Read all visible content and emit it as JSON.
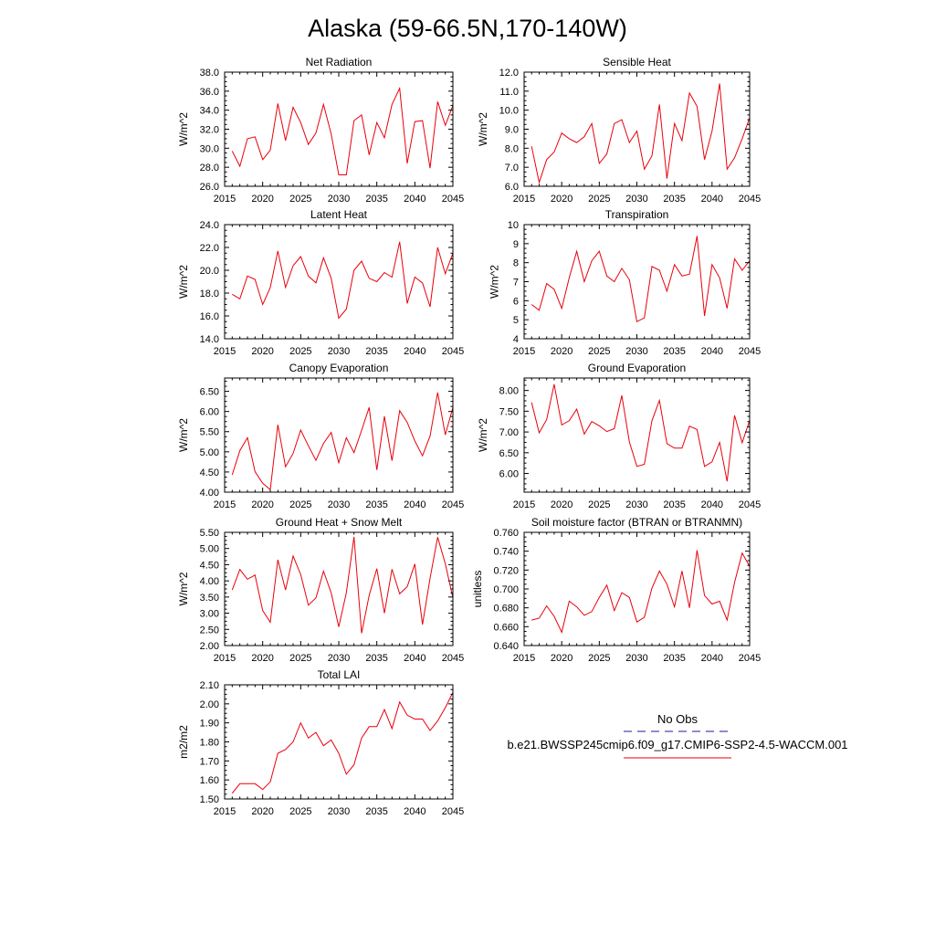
{
  "figure": {
    "title": "Alaska (59-66.5N,170-140W)"
  },
  "colors": {
    "model": "#e8000b",
    "obs": "#1a1aa6",
    "frame": "#000000"
  },
  "legend": {
    "obs_label": "No Obs",
    "model_label": "b.e21.BWSSP245cmip6.f09_g17.CMIP6-SSP2-4.5-WACCM.001"
  },
  "chart_data": [
    {
      "type": "line",
      "title": "Net Radiation",
      "ylabel": "W/m^2",
      "xlim": [
        2015,
        2045
      ],
      "ylim": [
        26.0,
        38.0
      ],
      "xticks": [
        2015,
        2020,
        2025,
        2030,
        2035,
        2040,
        2045
      ],
      "yticks": [
        "26.0",
        "28.0",
        "30.0",
        "32.0",
        "34.0",
        "36.0",
        "38.0"
      ],
      "x": [
        2016,
        2017,
        2018,
        2019,
        2020,
        2021,
        2022,
        2023,
        2024,
        2025,
        2026,
        2027,
        2028,
        2029,
        2030,
        2031,
        2032,
        2033,
        2034,
        2035,
        2036,
        2037,
        2038,
        2039,
        2040,
        2041,
        2042,
        2043,
        2044,
        2045
      ],
      "values": [
        29.7,
        28.1,
        31.0,
        31.2,
        28.8,
        29.8,
        34.7,
        30.8,
        34.3,
        32.7,
        30.4,
        31.6,
        34.6,
        31.5,
        27.2,
        27.2,
        32.9,
        33.5,
        29.3,
        32.7,
        31.1,
        34.6,
        36.3,
        28.4,
        32.8,
        32.9,
        27.9,
        34.9,
        32.4,
        34.5
      ]
    },
    {
      "type": "line",
      "title": "Sensible Heat",
      "ylabel": "W/m^2",
      "xlim": [
        2015,
        2045
      ],
      "ylim": [
        6.0,
        12.0
      ],
      "xticks": [
        2015,
        2020,
        2025,
        2030,
        2035,
        2040,
        2045
      ],
      "yticks": [
        "6.0",
        "7.0",
        "8.0",
        "9.0",
        "10.0",
        "11.0",
        "12.0"
      ],
      "x": [
        2016,
        2017,
        2018,
        2019,
        2020,
        2021,
        2022,
        2023,
        2024,
        2025,
        2026,
        2027,
        2028,
        2029,
        2030,
        2031,
        2032,
        2033,
        2034,
        2035,
        2036,
        2037,
        2038,
        2039,
        2040,
        2041,
        2042,
        2043,
        2044,
        2045
      ],
      "values": [
        8.1,
        6.2,
        7.4,
        7.8,
        8.8,
        8.5,
        8.3,
        8.6,
        9.3,
        7.2,
        7.7,
        9.3,
        9.5,
        8.3,
        8.9,
        6.9,
        7.6,
        10.3,
        6.4,
        9.3,
        8.4,
        10.9,
        10.2,
        7.4,
        8.9,
        11.4,
        6.9,
        7.5,
        8.5,
        9.6
      ]
    },
    {
      "type": "line",
      "title": "Latent Heat",
      "ylabel": "W/m^2",
      "xlim": [
        2015,
        2045
      ],
      "ylim": [
        14.0,
        24.0
      ],
      "xticks": [
        2015,
        2020,
        2025,
        2030,
        2035,
        2040,
        2045
      ],
      "yticks": [
        "14.0",
        "16.0",
        "18.0",
        "20.0",
        "22.0",
        "24.0"
      ],
      "x": [
        2016,
        2017,
        2018,
        2019,
        2020,
        2021,
        2022,
        2023,
        2024,
        2025,
        2026,
        2027,
        2028,
        2029,
        2030,
        2031,
        2032,
        2033,
        2034,
        2035,
        2036,
        2037,
        2038,
        2039,
        2040,
        2041,
        2042,
        2043,
        2044,
        2045
      ],
      "values": [
        17.9,
        17.5,
        19.5,
        19.2,
        17.0,
        18.5,
        21.7,
        18.5,
        20.4,
        21.2,
        19.5,
        18.9,
        21.1,
        19.3,
        15.8,
        16.6,
        20.0,
        20.8,
        19.3,
        19.0,
        19.8,
        19.4,
        22.5,
        17.1,
        19.4,
        18.9,
        16.8,
        22.0,
        19.7,
        21.5
      ]
    },
    {
      "type": "line",
      "title": "Transpiration",
      "ylabel": "W/m^2",
      "xlim": [
        2015,
        2045
      ],
      "ylim": [
        4,
        10
      ],
      "xticks": [
        2015,
        2020,
        2025,
        2030,
        2035,
        2040,
        2045
      ],
      "yticks": [
        "4",
        "5",
        "6",
        "7",
        "8",
        "9",
        "10"
      ],
      "x": [
        2016,
        2017,
        2018,
        2019,
        2020,
        2021,
        2022,
        2023,
        2024,
        2025,
        2026,
        2027,
        2028,
        2029,
        2030,
        2031,
        2032,
        2033,
        2034,
        2035,
        2036,
        2037,
        2038,
        2039,
        2040,
        2041,
        2042,
        2043,
        2044,
        2045
      ],
      "values": [
        5.8,
        5.5,
        6.9,
        6.6,
        5.6,
        7.2,
        8.6,
        7.0,
        8.1,
        8.6,
        7.3,
        7.0,
        7.7,
        7.1,
        4.9,
        5.1,
        7.8,
        7.6,
        6.5,
        7.9,
        7.3,
        7.4,
        9.4,
        5.2,
        7.9,
        7.2,
        5.6,
        8.2,
        7.6,
        8.1
      ]
    },
    {
      "type": "line",
      "title": "Canopy Evaporation",
      "ylabel": "W/m^2",
      "xlim": [
        2015,
        2045
      ],
      "ylim": [
        4.0,
        6.83
      ],
      "xticks": [
        2015,
        2020,
        2025,
        2030,
        2035,
        2040,
        2045
      ],
      "yticks": [
        "4.00",
        "4.50",
        "5.00",
        "5.50",
        "6.00",
        "6.50"
      ],
      "x": [
        2016,
        2017,
        2018,
        2019,
        2020,
        2021,
        2022,
        2023,
        2024,
        2025,
        2026,
        2027,
        2028,
        2029,
        2030,
        2031,
        2032,
        2033,
        2034,
        2035,
        2036,
        2037,
        2038,
        2039,
        2040,
        2041,
        2042,
        2043,
        2044,
        2045
      ],
      "values": [
        4.43,
        5.03,
        5.35,
        4.51,
        4.22,
        4.06,
        5.67,
        4.63,
        4.96,
        5.54,
        5.15,
        4.79,
        5.21,
        5.48,
        4.73,
        5.35,
        4.98,
        5.53,
        6.1,
        4.55,
        5.88,
        4.78,
        6.02,
        5.73,
        5.27,
        4.9,
        5.39,
        6.47,
        5.42,
        6.1
      ]
    },
    {
      "type": "line",
      "title": "Ground Evaporation",
      "ylabel": "W/m^2",
      "xlim": [
        2015,
        2045
      ],
      "ylim": [
        5.55,
        8.3
      ],
      "xticks": [
        2015,
        2020,
        2025,
        2030,
        2035,
        2040,
        2045
      ],
      "yticks": [
        "6.00",
        "6.50",
        "7.00",
        "7.50",
        "8.00"
      ],
      "x": [
        2016,
        2017,
        2018,
        2019,
        2020,
        2021,
        2022,
        2023,
        2024,
        2025,
        2026,
        2027,
        2028,
        2029,
        2030,
        2031,
        2032,
        2033,
        2034,
        2035,
        2036,
        2037,
        2038,
        2039,
        2040,
        2041,
        2042,
        2043,
        2044,
        2045
      ],
      "values": [
        7.71,
        6.98,
        7.3,
        8.15,
        7.17,
        7.27,
        7.55,
        6.95,
        7.25,
        7.15,
        7.01,
        7.08,
        7.88,
        6.76,
        6.17,
        6.22,
        7.27,
        7.76,
        6.72,
        6.61,
        6.61,
        7.14,
        7.06,
        6.17,
        6.28,
        6.75,
        5.81,
        7.4,
        6.74,
        7.28
      ]
    },
    {
      "type": "line",
      "title": "Ground Heat + Snow Melt",
      "ylabel": "W/m^2",
      "xlim": [
        2015,
        2045
      ],
      "ylim": [
        2.0,
        5.5
      ],
      "xticks": [
        2015,
        2020,
        2025,
        2030,
        2035,
        2040,
        2045
      ],
      "yticks": [
        "2.00",
        "2.50",
        "3.00",
        "3.50",
        "4.00",
        "4.50",
        "5.00",
        "5.50"
      ],
      "x": [
        2016,
        2017,
        2018,
        2019,
        2020,
        2021,
        2022,
        2023,
        2024,
        2025,
        2026,
        2027,
        2028,
        2029,
        2030,
        2031,
        2032,
        2033,
        2034,
        2035,
        2036,
        2037,
        2038,
        2039,
        2040,
        2041,
        2042,
        2043,
        2044,
        2045
      ],
      "values": [
        3.72,
        4.35,
        4.05,
        4.18,
        3.08,
        2.72,
        4.65,
        3.72,
        4.77,
        4.2,
        3.25,
        3.47,
        4.3,
        3.63,
        2.58,
        3.63,
        5.36,
        2.38,
        3.55,
        4.38,
        3.0,
        4.36,
        3.6,
        3.82,
        4.52,
        2.65,
        4.08,
        5.35,
        4.53,
        3.47
      ]
    },
    {
      "type": "line",
      "title": "Soil moisture factor (BTRAN or BTRANMN)",
      "ylabel": "unitless",
      "xlim": [
        2015,
        2045
      ],
      "ylim": [
        0.64,
        0.76
      ],
      "xticks": [
        2015,
        2020,
        2025,
        2030,
        2035,
        2040,
        2045
      ],
      "yticks": [
        "0.640",
        "0.660",
        "0.680",
        "0.700",
        "0.720",
        "0.740",
        "0.760"
      ],
      "x": [
        2016,
        2017,
        2018,
        2019,
        2020,
        2021,
        2022,
        2023,
        2024,
        2025,
        2026,
        2027,
        2028,
        2029,
        2030,
        2031,
        2032,
        2033,
        2034,
        2035,
        2036,
        2037,
        2038,
        2039,
        2040,
        2041,
        2042,
        2043,
        2044,
        2045
      ],
      "values": [
        0.667,
        0.669,
        0.682,
        0.671,
        0.654,
        0.687,
        0.681,
        0.672,
        0.676,
        0.691,
        0.704,
        0.677,
        0.696,
        0.691,
        0.665,
        0.67,
        0.701,
        0.719,
        0.705,
        0.681,
        0.719,
        0.68,
        0.741,
        0.693,
        0.684,
        0.687,
        0.667,
        0.707,
        0.738,
        0.724
      ]
    },
    {
      "type": "line",
      "title": "Total LAI",
      "ylabel": "m2/m2",
      "xlim": [
        2015,
        2045
      ],
      "ylim": [
        1.5,
        2.1
      ],
      "xticks": [
        2015,
        2020,
        2025,
        2030,
        2035,
        2040,
        2045
      ],
      "yticks": [
        "1.50",
        "1.60",
        "1.70",
        "1.80",
        "1.90",
        "2.00",
        "2.10"
      ],
      "x": [
        2016,
        2017,
        2018,
        2019,
        2020,
        2021,
        2022,
        2023,
        2024,
        2025,
        2026,
        2027,
        2028,
        2029,
        2030,
        2031,
        2032,
        2033,
        2034,
        2035,
        2036,
        2037,
        2038,
        2039,
        2040,
        2041,
        2042,
        2043,
        2044,
        2045
      ],
      "values": [
        1.53,
        1.58,
        1.58,
        1.58,
        1.55,
        1.59,
        1.74,
        1.76,
        1.8,
        1.9,
        1.82,
        1.85,
        1.78,
        1.81,
        1.74,
        1.63,
        1.68,
        1.82,
        1.88,
        1.88,
        1.97,
        1.87,
        2.01,
        1.94,
        1.92,
        1.92,
        1.86,
        1.91,
        1.98,
        2.06
      ]
    }
  ]
}
